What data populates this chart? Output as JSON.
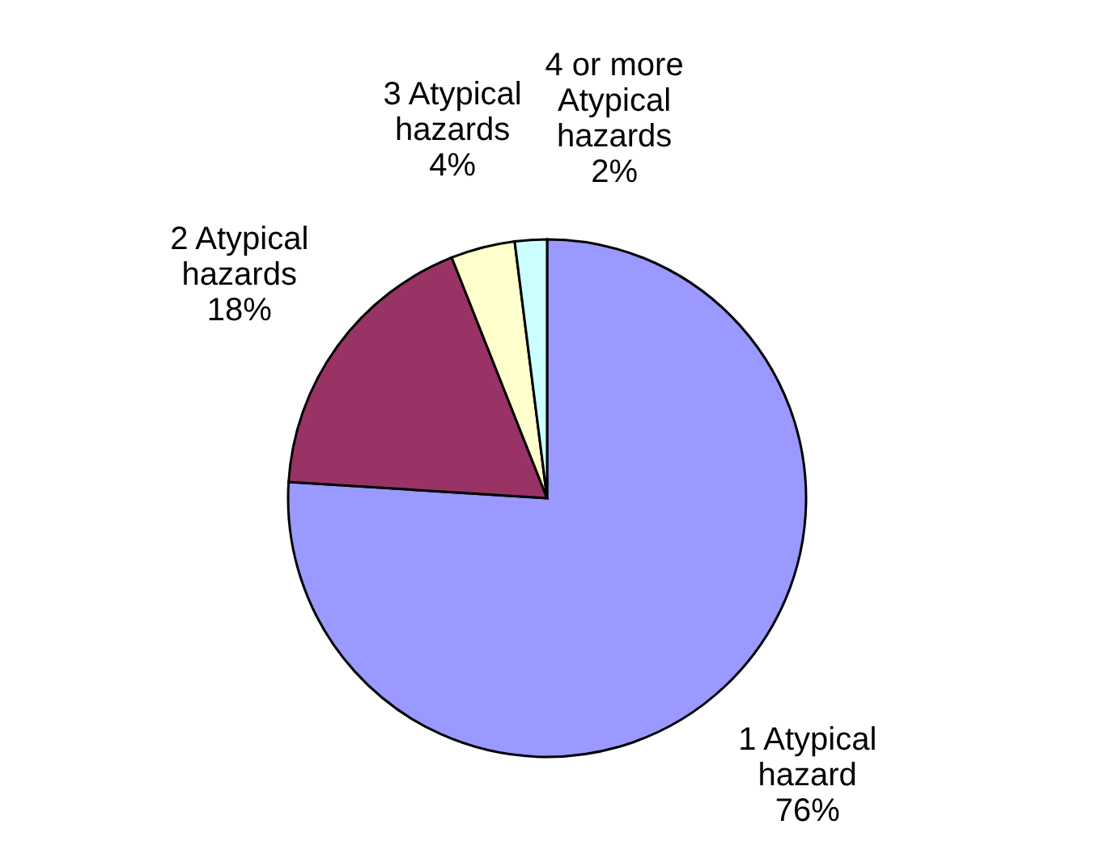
{
  "chart_data": {
    "type": "pie",
    "categories": [
      "1 Atypical hazard",
      "2 Atypical hazards",
      "3 Atypical hazards",
      "4 or more Atypical hazards"
    ],
    "values": [
      76,
      18,
      4,
      2
    ],
    "value_labels": [
      "76%",
      "18%",
      "4%",
      "2%"
    ],
    "colors": [
      "#9999ff",
      "#993366",
      "#ffffcc",
      "#ccffff"
    ]
  }
}
